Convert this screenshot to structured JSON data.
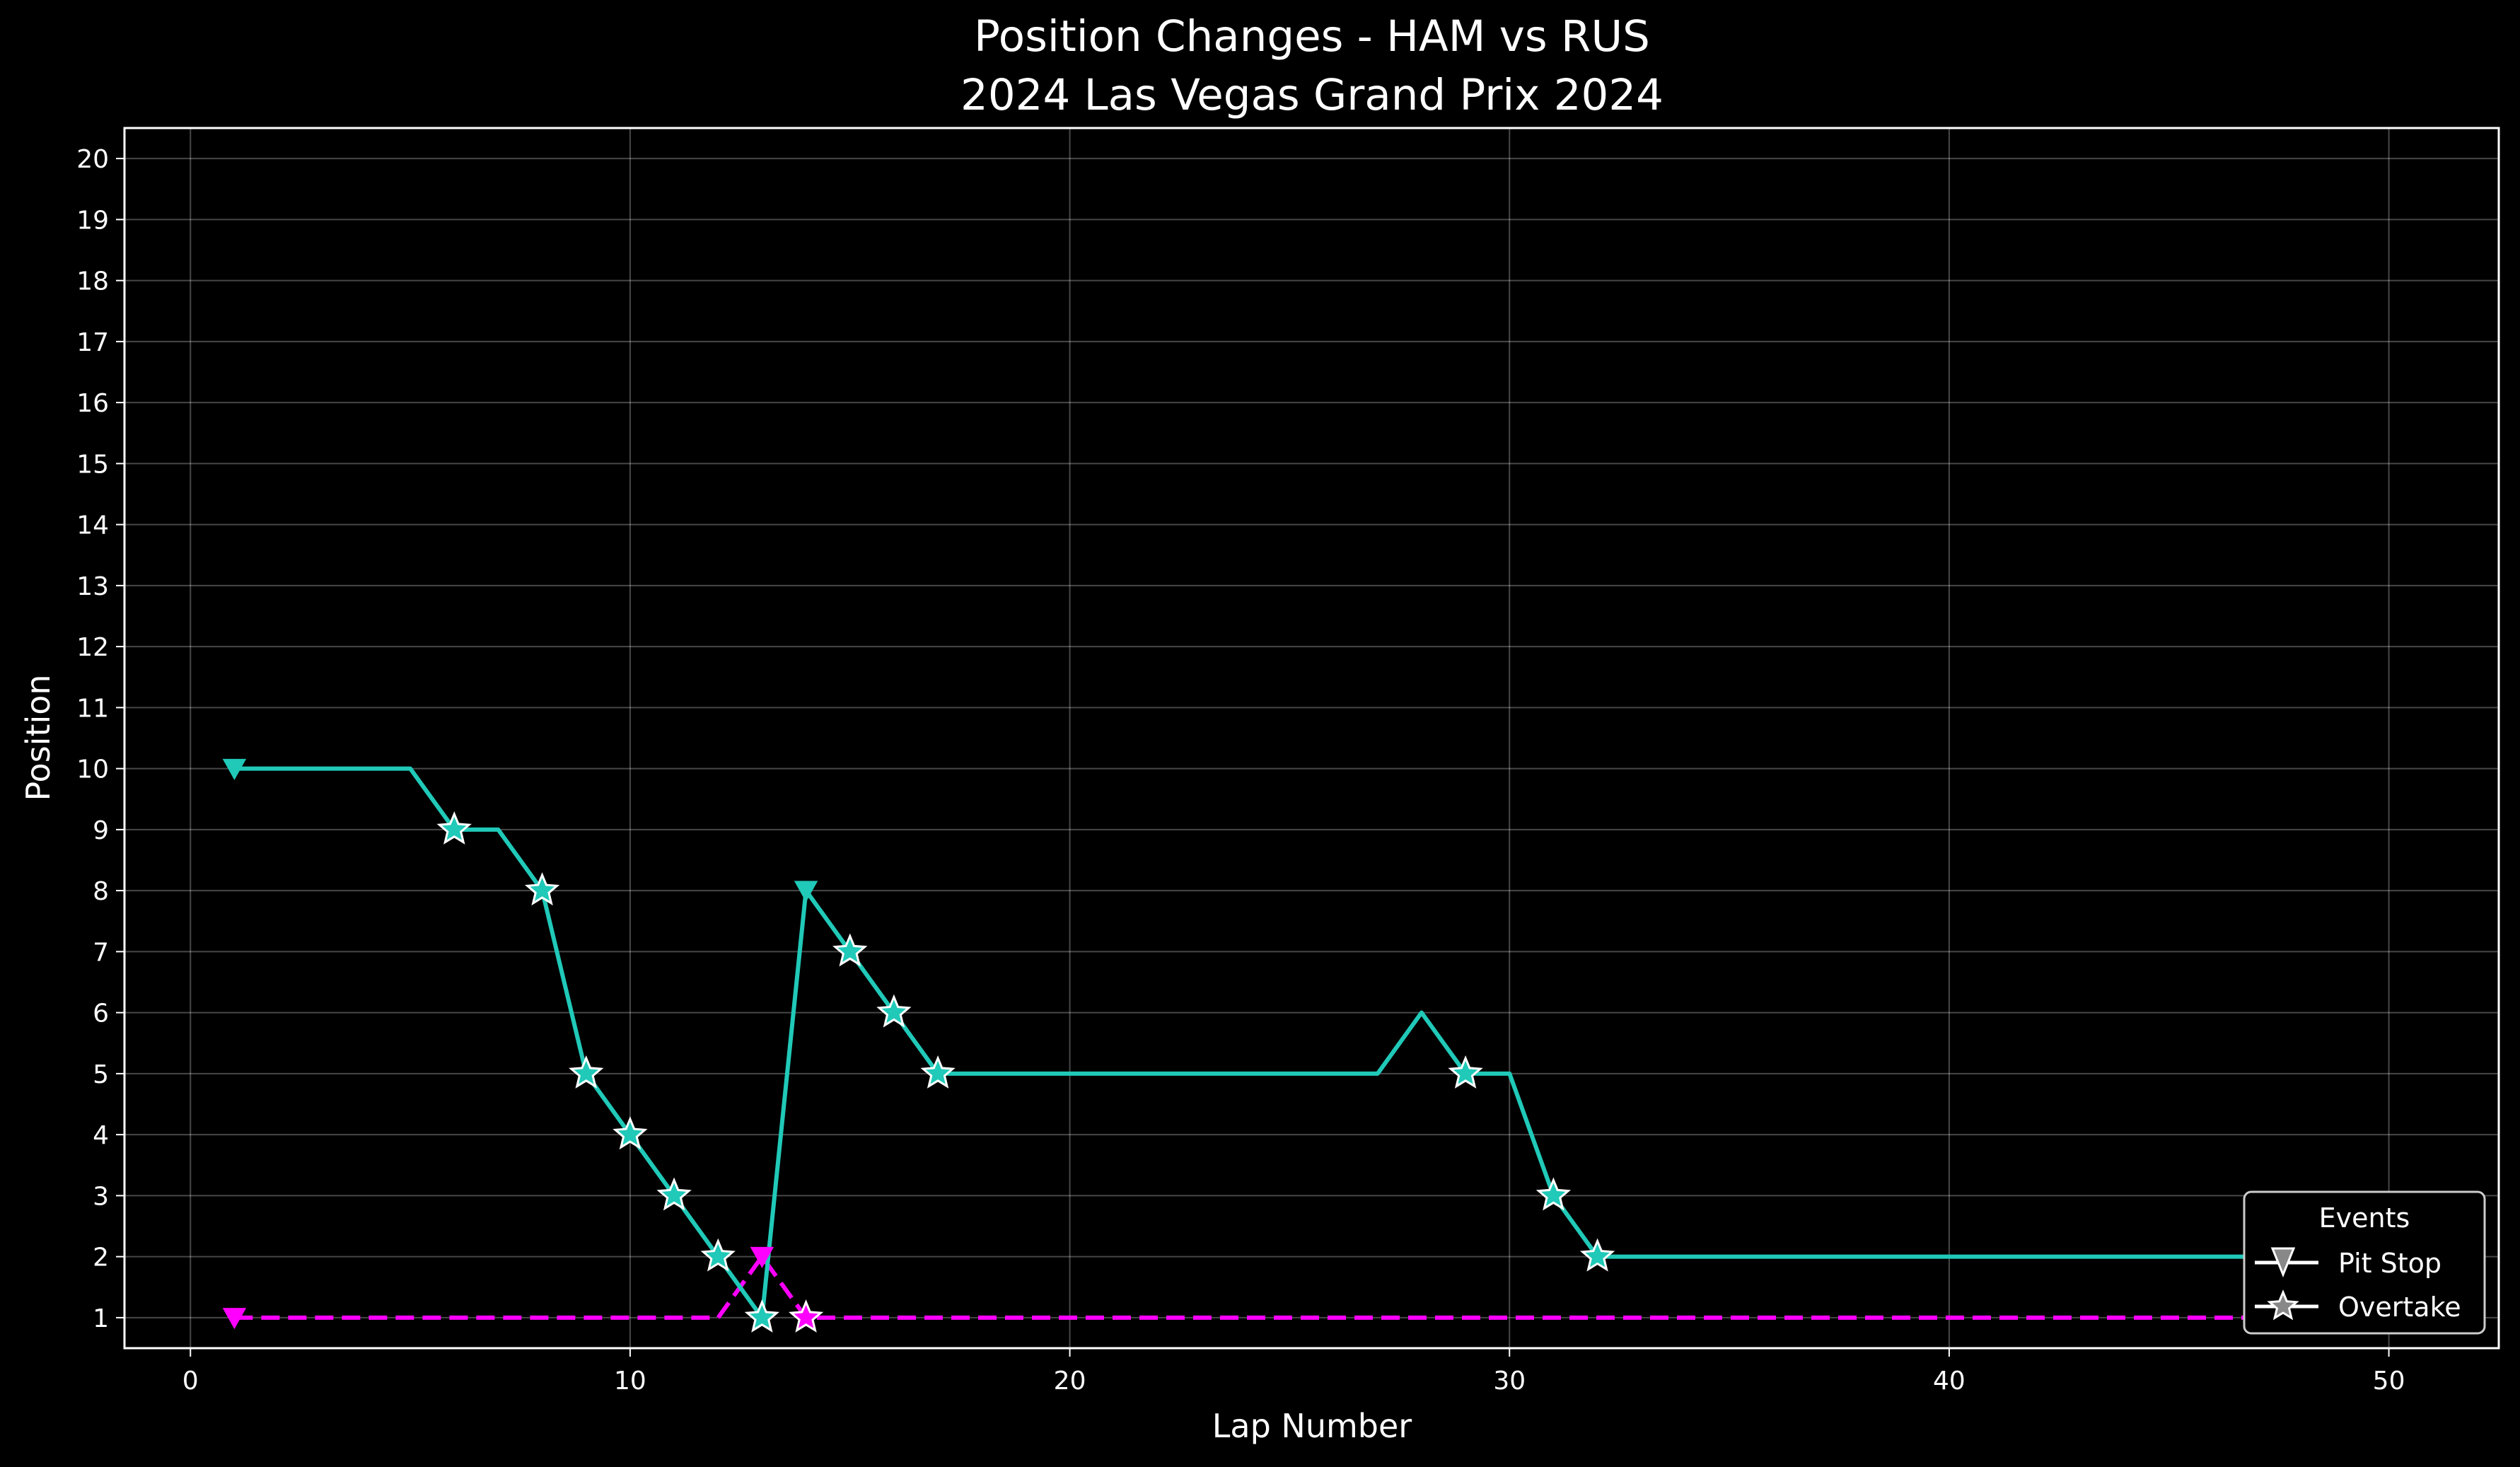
{
  "chart_data": {
    "type": "line",
    "title_line1": "Position Changes - HAM vs RUS",
    "title_line2": "2024 Las Vegas Grand Prix 2024",
    "xlabel": "Lap Number",
    "ylabel": "Position",
    "xlim": [
      -1.5,
      52.5
    ],
    "ylim": [
      20.5,
      0.5
    ],
    "y_inverted": true,
    "x_ticks": [
      0,
      10,
      20,
      30,
      40,
      50
    ],
    "y_ticks": [
      1,
      2,
      3,
      4,
      5,
      6,
      7,
      8,
      9,
      10,
      11,
      12,
      13,
      14,
      15,
      16,
      17,
      18,
      19,
      20
    ],
    "grid": true,
    "series": [
      {
        "color": "#ff00ff",
        "dash": true,
        "laps": [
          1,
          2,
          3,
          4,
          5,
          6,
          7,
          8,
          9,
          10,
          11,
          12,
          13,
          14,
          15,
          16,
          17,
          18,
          19,
          20,
          21,
          22,
          23,
          24,
          25,
          26,
          27,
          28,
          29,
          30,
          31,
          32,
          33,
          34,
          35,
          36,
          37,
          38,
          39,
          40,
          41,
          42,
          43,
          44,
          45,
          46,
          47,
          48,
          49,
          50
        ],
        "positions": [
          1,
          1,
          1,
          1,
          1,
          1,
          1,
          1,
          1,
          1,
          1,
          1,
          2,
          1,
          1,
          1,
          1,
          1,
          1,
          1,
          1,
          1,
          1,
          1,
          1,
          1,
          1,
          1,
          1,
          1,
          1,
          1,
          1,
          1,
          1,
          1,
          1,
          1,
          1,
          1,
          1,
          1,
          1,
          1,
          1,
          1,
          1,
          1,
          1,
          1
        ],
        "pit_stops": [
          [
            1,
            1
          ],
          [
            13,
            2
          ]
        ],
        "overtakes": [
          [
            14,
            1
          ]
        ]
      },
      {
        "color": "#20c9b8",
        "dash": false,
        "laps": [
          1,
          2,
          3,
          4,
          5,
          6,
          7,
          8,
          9,
          10,
          11,
          12,
          13,
          14,
          15,
          16,
          17,
          18,
          19,
          20,
          21,
          22,
          23,
          24,
          25,
          26,
          27,
          28,
          29,
          30,
          31,
          32,
          33,
          34,
          35,
          36,
          37,
          38,
          39,
          40,
          41,
          42,
          43,
          44,
          45,
          46,
          47,
          48,
          49,
          50
        ],
        "positions": [
          10,
          10,
          10,
          10,
          10,
          9,
          9,
          8,
          5,
          4,
          3,
          2,
          1,
          8,
          7,
          6,
          5,
          5,
          5,
          5,
          5,
          5,
          5,
          5,
          5,
          5,
          5,
          6,
          5,
          5,
          3,
          2,
          2,
          2,
          2,
          2,
          2,
          2,
          2,
          2,
          2,
          2,
          2,
          2,
          2,
          2,
          2,
          2,
          2,
          2
        ],
        "pit_stops": [
          [
            1,
            10
          ],
          [
            14,
            8
          ]
        ],
        "overtakes": [
          [
            6,
            9
          ],
          [
            8,
            8
          ],
          [
            9,
            5
          ],
          [
            10,
            4
          ],
          [
            11,
            3
          ],
          [
            12,
            2
          ],
          [
            13,
            1
          ],
          [
            15,
            7
          ],
          [
            16,
            6
          ],
          [
            17,
            5
          ],
          [
            29,
            5
          ],
          [
            31,
            3
          ],
          [
            32,
            2
          ]
        ]
      }
    ],
    "legend": {
      "title": "Events",
      "placement": "bottom-right",
      "entries": [
        {
          "label": "Pit Stop",
          "marker": "triangle-down"
        },
        {
          "label": "Overtake",
          "marker": "star"
        }
      ]
    }
  }
}
